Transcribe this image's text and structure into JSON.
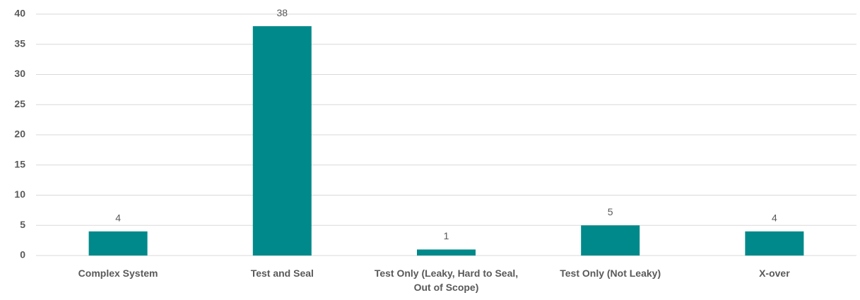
{
  "chart_data": {
    "type": "bar",
    "categories": [
      "Complex System",
      "Test and Seal",
      "Test Only (Leaky, Hard to Seal, Out of Scope)",
      "Test Only (Not Leaky)",
      "X-over"
    ],
    "values": [
      4,
      38,
      1,
      5,
      4
    ],
    "color": "#00898a",
    "ylim": [
      0,
      40
    ],
    "yticks": [
      0,
      5,
      10,
      15,
      20,
      25,
      30,
      35,
      40
    ],
    "grid": true
  }
}
